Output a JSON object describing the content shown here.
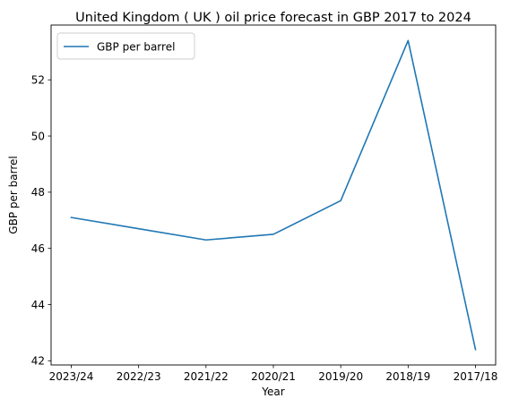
{
  "chart_data": {
    "type": "line",
    "title": "United Kingdom ( UK ) oil price forecast in GBP 2017 to 2024",
    "xlabel": "Year",
    "ylabel": "GBP per barrel",
    "categories": [
      "2023/24",
      "2022/23",
      "2021/22",
      "2020/21",
      "2019/20",
      "2018/19",
      "2017/18"
    ],
    "series": [
      {
        "name": "GBP per barrel",
        "values": [
          47.1,
          46.7,
          46.3,
          46.5,
          47.7,
          53.4,
          42.4
        ],
        "color": "#1f77b4"
      }
    ],
    "yticks": [
      42,
      44,
      46,
      48,
      50,
      52
    ],
    "ylim": [
      41.85,
      53.95
    ],
    "grid": false,
    "legend_position": "top-left"
  }
}
